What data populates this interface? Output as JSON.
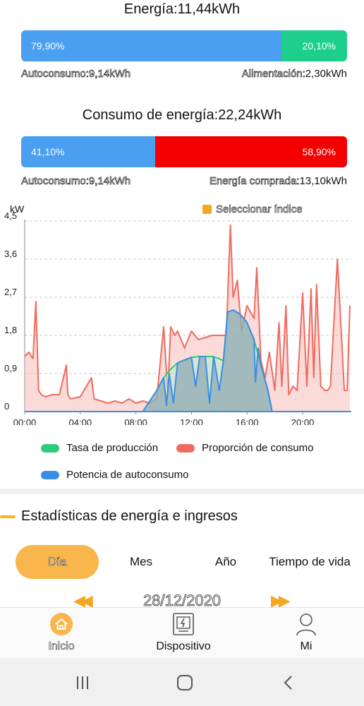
{
  "energy": {
    "title": "Energía:11,44kWh",
    "left_pct_label": "79,90%",
    "right_pct_label": "20,10%",
    "left_fraction": 0.799,
    "left_color": "#4a9ff0",
    "right_color": "#1ecf8c",
    "left_key": "Autoconsumo:",
    "left_value": "9,14kWh",
    "right_key": "Alimentación:",
    "right_value": "2,30kWh"
  },
  "consumption": {
    "title": "Consumo de energía:22,24kWh",
    "left_pct_label": "41,10%",
    "right_pct_label": "58,90%",
    "left_fraction": 0.411,
    "left_color": "#4a9ff0",
    "right_color": "#f50000",
    "left_key": "Autoconsumo:",
    "left_value": "9,14kWh",
    "right_key": "Energía comprada:",
    "right_value": "13,10kWh"
  },
  "chart_header": {
    "unit": "kW",
    "index_button": "Seleccionar índice"
  },
  "chart_data": {
    "type": "area",
    "xlabel": "",
    "ylabel": "kW",
    "ylim": [
      0,
      4.5
    ],
    "xlim_hours": [
      0,
      23.5
    ],
    "yticks": [
      "0",
      "0,9",
      "1,8",
      "2,7",
      "3,6",
      "4,5"
    ],
    "xticks": [
      "00:00",
      "04:00",
      "08:00",
      "12:00",
      "16:00",
      "20:00"
    ],
    "grid": "horizontal-dashed",
    "series": [
      {
        "name": "Tasa de producción",
        "color": "#2ecc7a",
        "x": [
          8.5,
          9.0,
          9.5,
          10.0,
          10.5,
          11.0,
          11.5,
          12.0,
          12.5,
          13.0,
          13.5,
          14.0,
          14.3,
          14.6,
          15.0,
          15.5,
          16.0,
          16.5,
          17.0,
          17.5,
          17.8
        ],
        "y": [
          0,
          0.25,
          0.5,
          0.8,
          1.0,
          1.15,
          1.22,
          1.28,
          1.3,
          1.3,
          1.3,
          1.25,
          1.2,
          2.35,
          2.4,
          2.3,
          2.1,
          1.7,
          1.1,
          0.5,
          0
        ]
      },
      {
        "name": "Proporción de consumo",
        "color": "#f06b5f",
        "x": [
          0,
          0.3,
          0.6,
          0.8,
          1.0,
          1.2,
          1.5,
          2.0,
          2.5,
          3.0,
          3.1,
          3.3,
          4.0,
          4.8,
          5.0,
          5.5,
          6.0,
          6.5,
          7.0,
          7.5,
          8.0,
          8.5,
          9.0,
          9.5,
          10.0,
          10.3,
          10.5,
          10.8,
          11.0,
          11.5,
          12.0,
          12.5,
          13.0,
          13.5,
          14.0,
          14.5,
          14.8,
          15.0,
          15.3,
          15.6,
          16.0,
          16.5,
          16.7,
          17.0,
          17.3,
          17.6,
          18.0,
          18.3,
          18.5,
          18.8,
          19.0,
          19.3,
          19.6,
          20.0,
          20.3,
          20.6,
          20.8,
          21.0,
          21.3,
          21.6,
          21.8,
          22.0,
          22.5,
          23.0,
          23.2,
          23.4
        ],
        "y": [
          1.3,
          1.4,
          1.25,
          2.6,
          0.5,
          0.4,
          0.35,
          0.4,
          0.4,
          1.1,
          0.4,
          0.3,
          0.35,
          0.8,
          0.3,
          0.25,
          0.2,
          0.25,
          0.2,
          0.3,
          0.2,
          0.25,
          0.2,
          0.3,
          2.0,
          0.4,
          2.0,
          1.8,
          1.9,
          1.5,
          1.9,
          1.7,
          1.75,
          1.8,
          1.8,
          1.8,
          4.4,
          2.7,
          3.1,
          1.9,
          2.5,
          2.2,
          3.4,
          1.2,
          0.8,
          1.4,
          0.5,
          2.1,
          0.6,
          2.5,
          0.4,
          0.6,
          0.5,
          2.8,
          0.6,
          2.9,
          0.8,
          3.0,
          0.6,
          0.5,
          0.5,
          0.6,
          3.6,
          0.5,
          0.5,
          2.5
        ]
      },
      {
        "name": "Potencia de autoconsumo",
        "color": "#3a8ee8",
        "x": [
          8.5,
          9.0,
          9.5,
          10.0,
          10.2,
          10.4,
          10.7,
          11.0,
          11.5,
          12.0,
          12.3,
          12.6,
          13.0,
          13.3,
          13.6,
          14.0,
          14.3,
          14.6,
          15.0,
          15.5,
          16.0,
          16.5,
          16.6,
          16.8,
          17.0,
          17.5,
          17.8
        ],
        "y": [
          0,
          0.25,
          0.5,
          0.8,
          0.15,
          0.9,
          0.2,
          1.15,
          1.22,
          1.28,
          0.6,
          1.3,
          1.3,
          0.2,
          1.3,
          0.5,
          1.2,
          2.35,
          2.4,
          2.3,
          2.1,
          1.7,
          0.7,
          1.5,
          1.1,
          0.5,
          0
        ]
      }
    ]
  },
  "legend": {
    "production": "Tasa de producción",
    "consumption": "Proporción de consumo",
    "self_consumption": "Potencia de autoconsumo"
  },
  "stats": {
    "title": "Estadísticas de energía e ingresos",
    "tabs": [
      "Día",
      "Mes",
      "Año",
      "Tiempo de vida"
    ],
    "active_tab": "Día",
    "date": "28/12/2020"
  },
  "navbar": {
    "home": "Inicio",
    "device": "Dispositivo",
    "me": "Mi"
  },
  "colors": {
    "accent": "#f8b64c"
  }
}
